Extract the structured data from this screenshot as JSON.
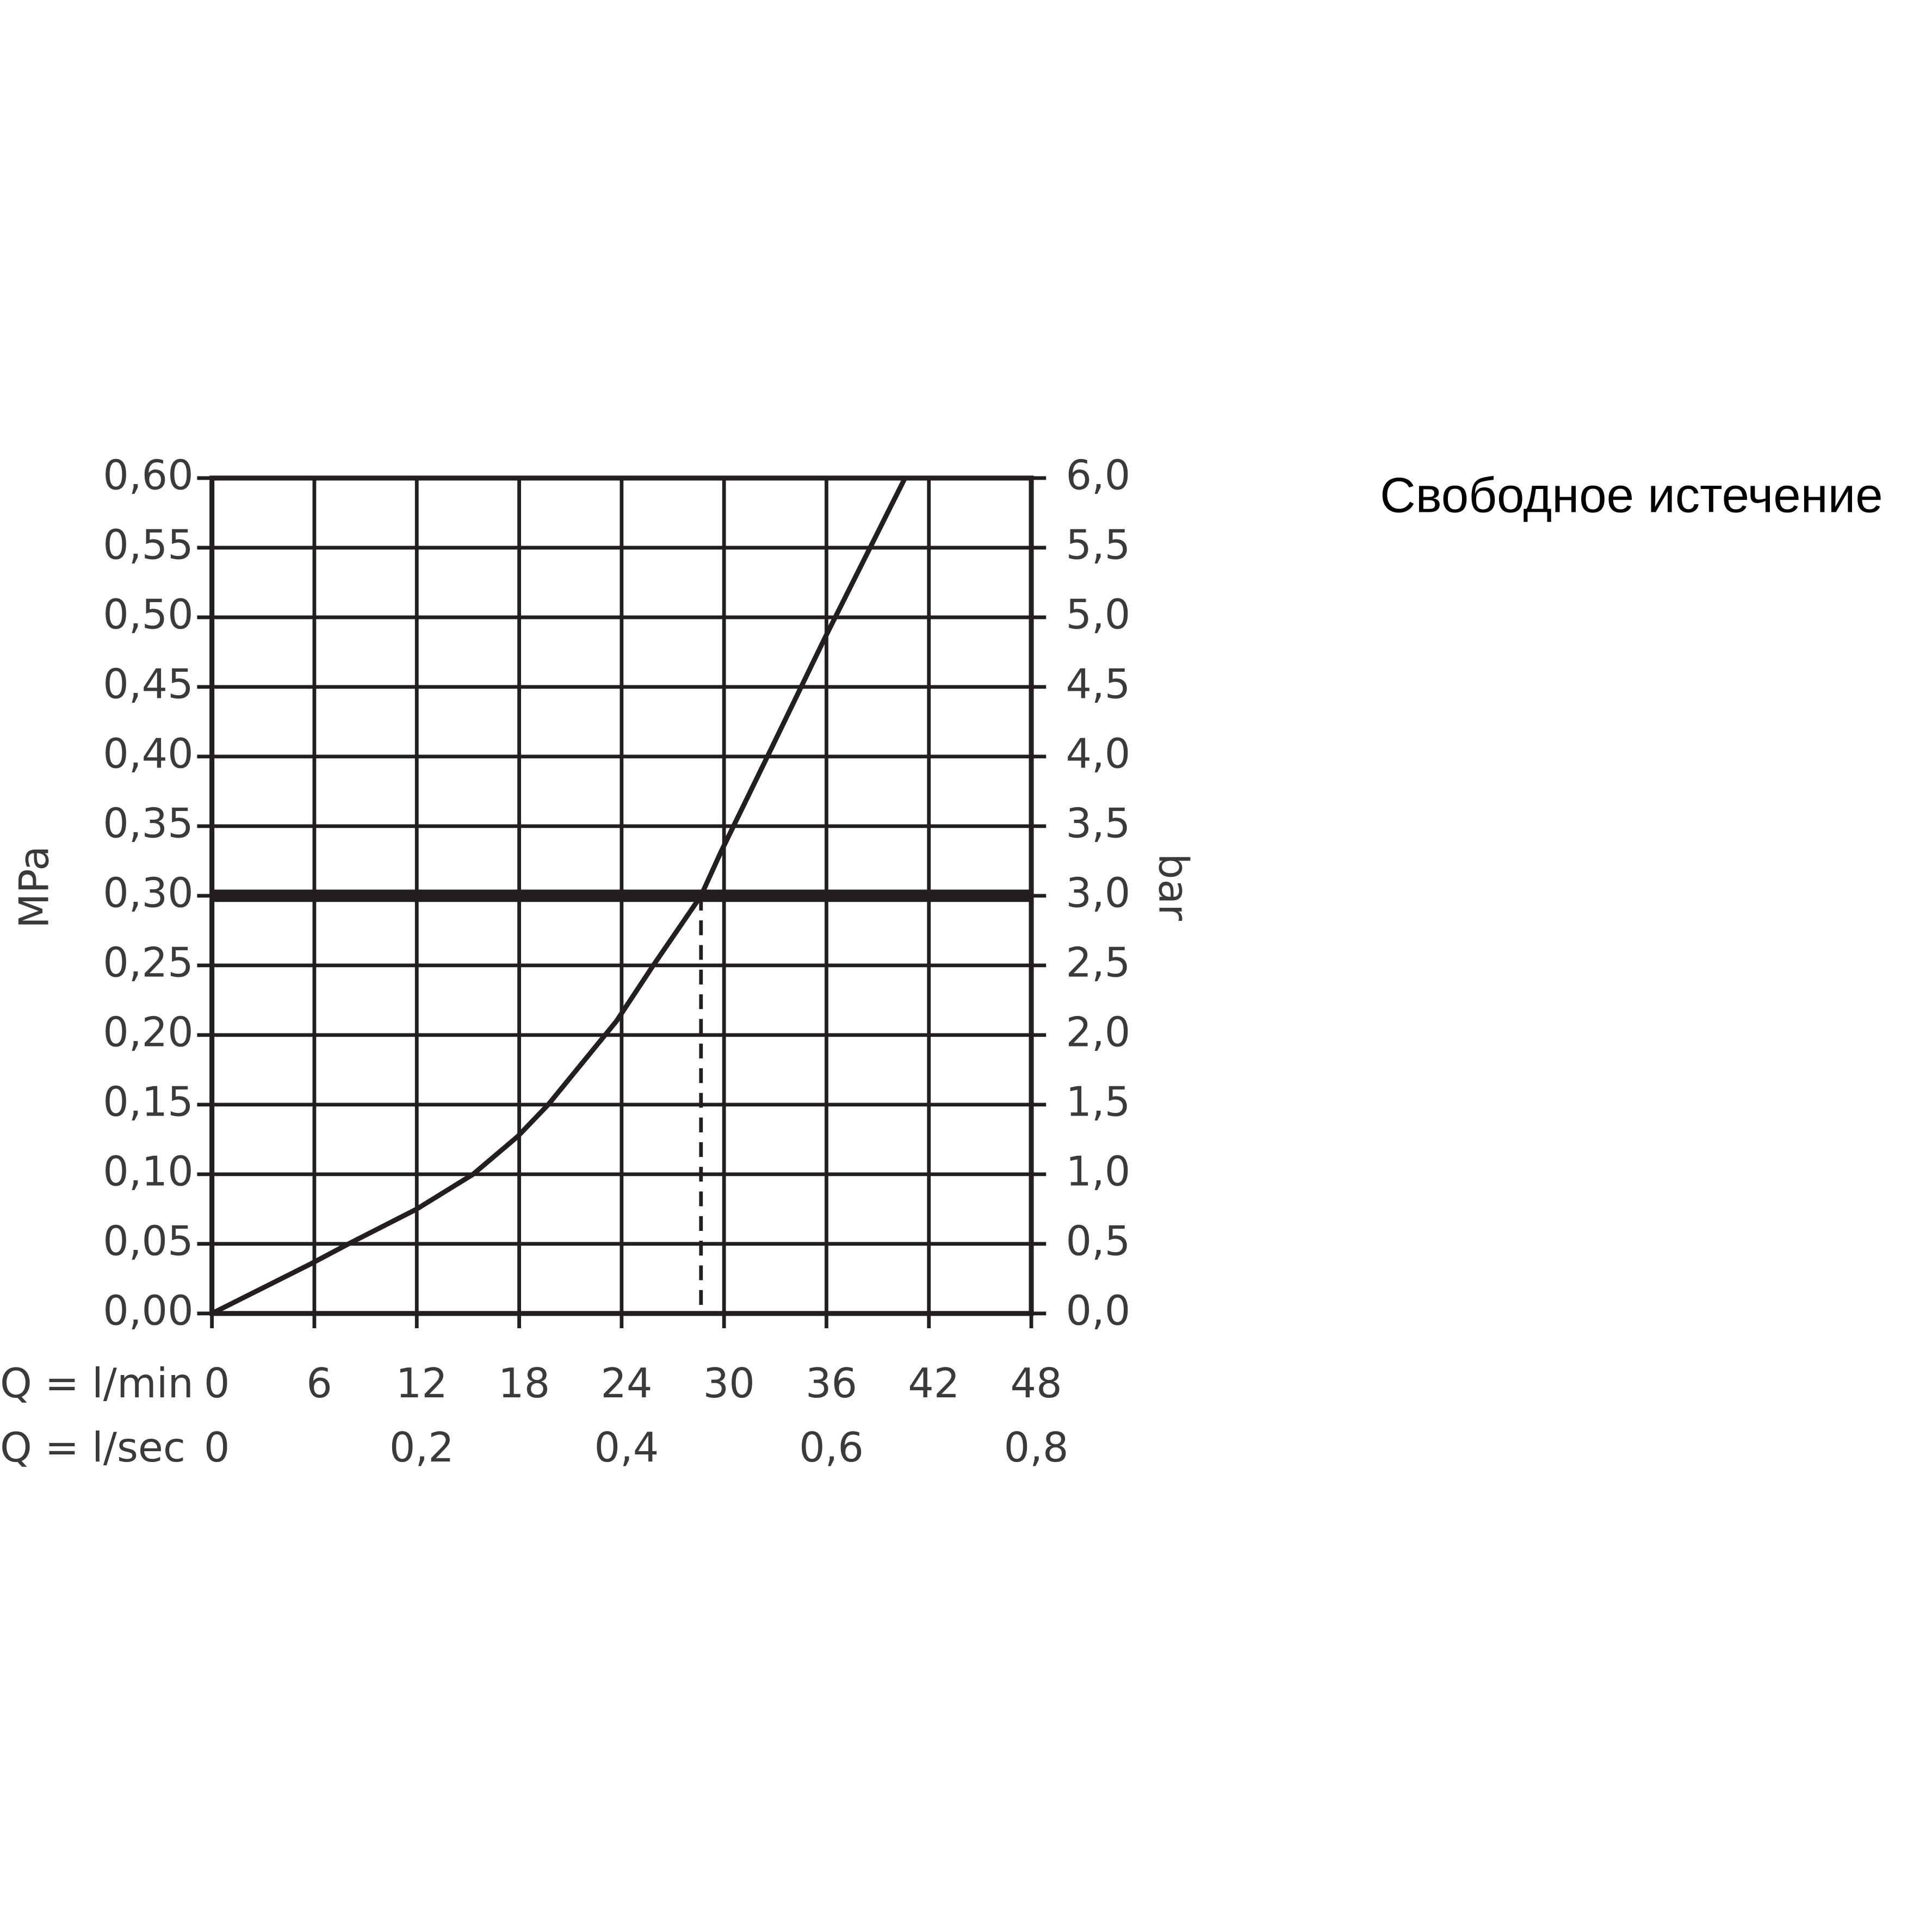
{
  "chart_data": {
    "type": "line",
    "title": "Свободное истечение",
    "y_label": "MPa",
    "y2_label": "bar",
    "x_label": "Q = l/min",
    "x2_label": "Q = l/sec",
    "x": [
      0,
      5.85,
      8,
      12,
      15.3,
      17.9,
      19.7,
      23.7,
      25.8,
      28.65,
      29.8,
      32.7,
      35.9,
      40.6
    ],
    "series": [
      {
        "color": "#231f20",
        "values": [
          0,
          0.036,
          0.05,
          0.075,
          0.1,
          0.127,
          0.15,
          0.21,
          0.249,
          0.3,
          0.331,
          0.404,
          0.485,
          0.6
        ]
      }
    ],
    "hline": 0.3,
    "vline": 28.65,
    "xlim": [
      0,
      48
    ],
    "xticks": [
      0,
      6,
      12,
      18,
      24,
      30,
      36,
      42,
      48
    ],
    "x2lim": [
      0,
      0.8
    ],
    "x2ticks": [
      0,
      {
        "value": 0.2,
        "label": "0,2"
      },
      {
        "value": 0.4,
        "label": "0,4"
      },
      {
        "value": 0.6,
        "label": "0,6"
      },
      {
        "value": 0.8,
        "label": "0,8"
      }
    ],
    "ylim": [
      0,
      0.6
    ],
    "yticks": [
      {
        "value": 0,
        "label": "0,00"
      },
      {
        "value": 0.05,
        "label": "0,05"
      },
      {
        "value": 0.1,
        "label": "0,10"
      },
      {
        "value": 0.15,
        "label": "0,15"
      },
      {
        "value": 0.2,
        "label": "0,20"
      },
      {
        "value": 0.25,
        "label": "0,25"
      },
      {
        "value": 0.3,
        "label": "0,30"
      },
      {
        "value": 0.35,
        "label": "0,35"
      },
      {
        "value": 0.4,
        "label": "0,40"
      },
      {
        "value": 0.45,
        "label": "0,45"
      },
      {
        "value": 0.5,
        "label": "0,50"
      },
      {
        "value": 0.55,
        "label": "0,55"
      },
      {
        "value": 0.6,
        "label": "0,60"
      }
    ],
    "y2lim": [
      0,
      6
    ],
    "y2ticks": [
      {
        "value": 0,
        "label": "0,0"
      },
      {
        "value": 0.5,
        "label": "0,5"
      },
      {
        "value": 1,
        "label": "1,0"
      },
      {
        "value": 1.5,
        "label": "1,5"
      },
      {
        "value": 2,
        "label": "2,0"
      },
      {
        "value": 2.5,
        "label": "2,5"
      },
      {
        "value": 3,
        "label": "3,0"
      },
      {
        "value": 3.5,
        "label": "3,5"
      },
      {
        "value": 4,
        "label": "4,0"
      },
      {
        "value": 4.5,
        "label": "4,5"
      },
      {
        "value": 5,
        "label": "5,0"
      },
      {
        "value": 5.5,
        "label": "5,5"
      },
      {
        "value": 6,
        "label": "6,0"
      }
    ],
    "grid": true
  }
}
